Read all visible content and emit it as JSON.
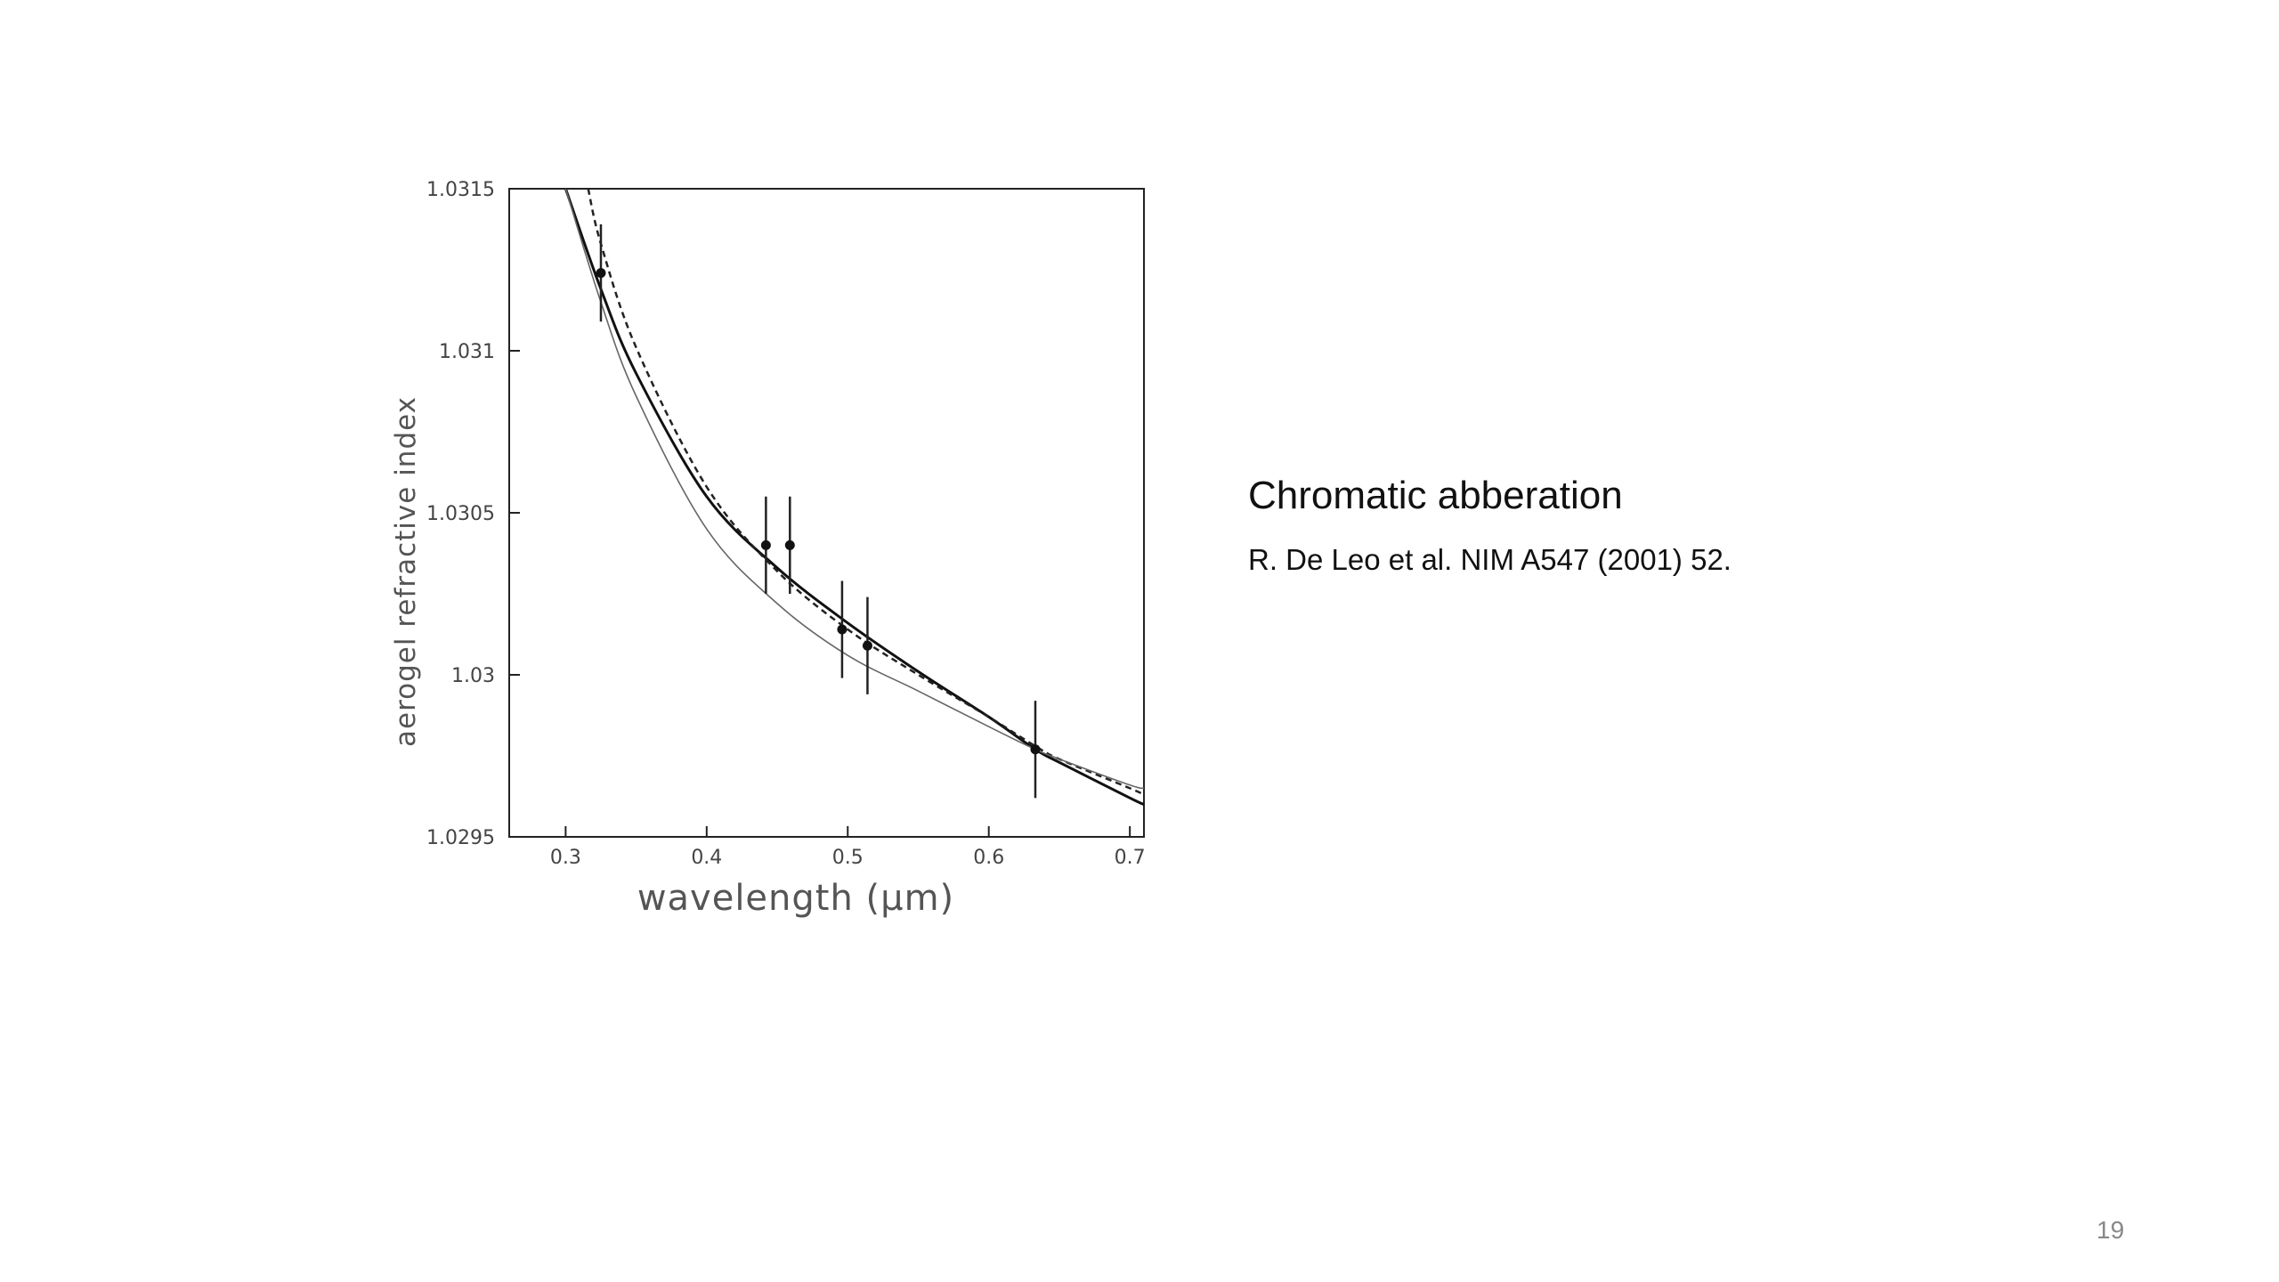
{
  "slide": {
    "title": "Chromatic abberation",
    "citation": "R. De Leo et al. NIM A547 (2001) 52.",
    "page_number": "19"
  },
  "chart_data": {
    "type": "scatter",
    "xlabel": "wavelength (μm)",
    "ylabel": "aerogel refractive index",
    "xlim": [
      0.26,
      0.71
    ],
    "ylim": [
      1.0295,
      1.0315
    ],
    "x_ticks": [
      0.3,
      0.4,
      0.5,
      0.6,
      0.7
    ],
    "x_tick_labels": [
      "0.3",
      "0.4",
      "0.5",
      "0.6",
      "0.7"
    ],
    "y_ticks": [
      1.0295,
      1.03,
      1.0305,
      1.031,
      1.0315
    ],
    "y_tick_labels": [
      "1.0295",
      "1.03",
      "1.0305",
      "1.031",
      "1.0315"
    ],
    "points": [
      {
        "x": 0.325,
        "y": 1.03124,
        "err": 0.00015
      },
      {
        "x": 0.442,
        "y": 1.0304,
        "err": 0.00015
      },
      {
        "x": 0.459,
        "y": 1.0304,
        "err": 0.00015
      },
      {
        "x": 0.496,
        "y": 1.03014,
        "err": 0.00015
      },
      {
        "x": 0.514,
        "y": 1.03009,
        "err": 0.00015
      },
      {
        "x": 0.633,
        "y": 1.02977,
        "err": 0.00015
      }
    ],
    "curves": [
      {
        "style": "solid",
        "color": "#111111",
        "x": [
          0.3,
          0.325,
          0.35,
          0.4,
          0.45,
          0.5,
          0.55,
          0.6,
          0.633,
          0.65,
          0.7,
          0.71
        ],
        "y": [
          1.0315,
          1.03119,
          1.03093,
          1.03055,
          1.03033,
          1.03016,
          1.03001,
          1.02987,
          1.02977,
          1.02973,
          1.02962,
          1.0296
        ]
      },
      {
        "style": "dashed",
        "color": "#222222",
        "x": [
          0.316,
          0.325,
          0.35,
          0.4,
          0.45,
          0.5,
          0.55,
          0.6,
          0.633,
          0.65,
          0.7,
          0.71
        ],
        "y": [
          1.0315,
          1.03133,
          1.03101,
          1.03058,
          1.03032,
          1.03014,
          1.03,
          1.02987,
          1.02978,
          1.02974,
          1.02965,
          1.02963
        ]
      },
      {
        "style": "thin",
        "color": "#666666",
        "x": [
          0.3,
          0.325,
          0.35,
          0.4,
          0.45,
          0.5,
          0.55,
          0.6,
          0.633,
          0.65,
          0.7,
          0.71
        ],
        "y": [
          1.0315,
          1.03115,
          1.03086,
          1.03045,
          1.03022,
          1.03006,
          1.02995,
          1.02984,
          1.02977,
          1.02974,
          1.02966,
          1.02965
        ]
      }
    ]
  }
}
